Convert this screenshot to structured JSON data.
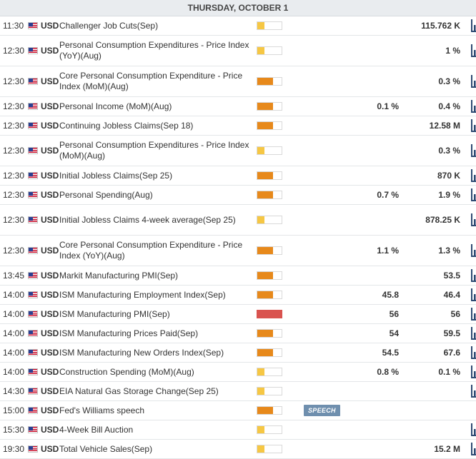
{
  "day_header": "THURSDAY, OCTOBER 1",
  "icons": {
    "flag": "us-flag-icon",
    "chart": "bar-chart-icon"
  },
  "colors": {
    "low": "#f6c744",
    "medium": "#e7891b",
    "high": "#d9534f",
    "speech": "#6f8fae"
  },
  "events": [
    {
      "time": "11:30",
      "currency": "USD",
      "name": "Challenger Job Cuts(Sep)",
      "impact": "low",
      "actual": "",
      "consensus": "",
      "previous": "115.762 K",
      "chart": true
    },
    {
      "time": "12:30",
      "currency": "USD",
      "name": "Personal Consumption Expenditures - Price Index (YoY)(Aug)",
      "impact": "low",
      "actual": "",
      "consensus": "",
      "previous": "1 %",
      "chart": true
    },
    {
      "time": "12:30",
      "currency": "USD",
      "name": "Core Personal Consumption Expenditure - Price Index (MoM)(Aug)",
      "impact": "medium",
      "actual": "",
      "consensus": "",
      "previous": "0.3 %",
      "chart": true
    },
    {
      "time": "12:30",
      "currency": "USD",
      "name": "Personal Income (MoM)(Aug)",
      "impact": "medium",
      "actual": "",
      "consensus": "0.1 %",
      "previous": "0.4 %",
      "chart": true
    },
    {
      "time": "12:30",
      "currency": "USD",
      "name": "Continuing Jobless Claims(Sep 18)",
      "impact": "medium",
      "actual": "",
      "consensus": "",
      "previous": "12.58 M",
      "chart": true
    },
    {
      "time": "12:30",
      "currency": "USD",
      "name": "Personal Consumption Expenditures - Price Index (MoM)(Aug)",
      "impact": "low",
      "actual": "",
      "consensus": "",
      "previous": "0.3 %",
      "chart": true
    },
    {
      "time": "12:30",
      "currency": "USD",
      "name": "Initial Jobless Claims(Sep 25)",
      "impact": "medium",
      "actual": "",
      "consensus": "",
      "previous": "870 K",
      "chart": true
    },
    {
      "time": "12:30",
      "currency": "USD",
      "name": "Personal Spending(Aug)",
      "impact": "medium",
      "actual": "",
      "consensus": "0.7 %",
      "previous": "1.9 %",
      "chart": true
    },
    {
      "time": "12:30",
      "currency": "USD",
      "name": "Initial Jobless Claims 4-week average(Sep 25)",
      "impact": "low",
      "actual": "",
      "consensus": "",
      "previous": "878.25 K",
      "chart": true
    },
    {
      "time": "12:30",
      "currency": "USD",
      "name": "Core Personal Consumption Expenditure - Price Index (YoY)(Aug)",
      "impact": "medium",
      "actual": "",
      "consensus": "1.1 %",
      "previous": "1.3 %",
      "chart": true
    },
    {
      "time": "13:45",
      "currency": "USD",
      "name": "Markit Manufacturing PMI(Sep)",
      "impact": "medium",
      "actual": "",
      "consensus": "",
      "previous": "53.5",
      "chart": true
    },
    {
      "time": "14:00",
      "currency": "USD",
      "name": "ISM Manufacturing Employment Index(Sep)",
      "impact": "medium",
      "actual": "",
      "consensus": "45.8",
      "previous": "46.4",
      "chart": true
    },
    {
      "time": "14:00",
      "currency": "USD",
      "name": "ISM Manufacturing PMI(Sep)",
      "impact": "high",
      "actual": "",
      "consensus": "56",
      "previous": "56",
      "chart": true
    },
    {
      "time": "14:00",
      "currency": "USD",
      "name": "ISM Manufacturing Prices Paid(Sep)",
      "impact": "medium",
      "actual": "",
      "consensus": "54",
      "previous": "59.5",
      "chart": true
    },
    {
      "time": "14:00",
      "currency": "USD",
      "name": "ISM Manufacturing New Orders Index(Sep)",
      "impact": "medium",
      "actual": "",
      "consensus": "54.5",
      "previous": "67.6",
      "chart": true
    },
    {
      "time": "14:00",
      "currency": "USD",
      "name": "Construction Spending (MoM)(Aug)",
      "impact": "low",
      "actual": "",
      "consensus": "0.8 %",
      "previous": "0.1 %",
      "chart": true
    },
    {
      "time": "14:30",
      "currency": "USD",
      "name": "EIA Natural Gas Storage Change(Sep 25)",
      "impact": "low",
      "actual": "",
      "consensus": "",
      "previous": "",
      "chart": true
    },
    {
      "time": "15:00",
      "currency": "USD",
      "name": "Fed's Williams speech",
      "impact": "medium",
      "actual": "",
      "consensus": "",
      "previous": "",
      "chart": false,
      "tag": "SPEECH"
    },
    {
      "time": "15:30",
      "currency": "USD",
      "name": "4-Week Bill Auction",
      "impact": "low",
      "actual": "",
      "consensus": "",
      "previous": "",
      "chart": true
    },
    {
      "time": "19:30",
      "currency": "USD",
      "name": "Total Vehicle Sales(Sep)",
      "impact": "low",
      "actual": "",
      "consensus": "",
      "previous": "15.2 M",
      "chart": true
    }
  ]
}
